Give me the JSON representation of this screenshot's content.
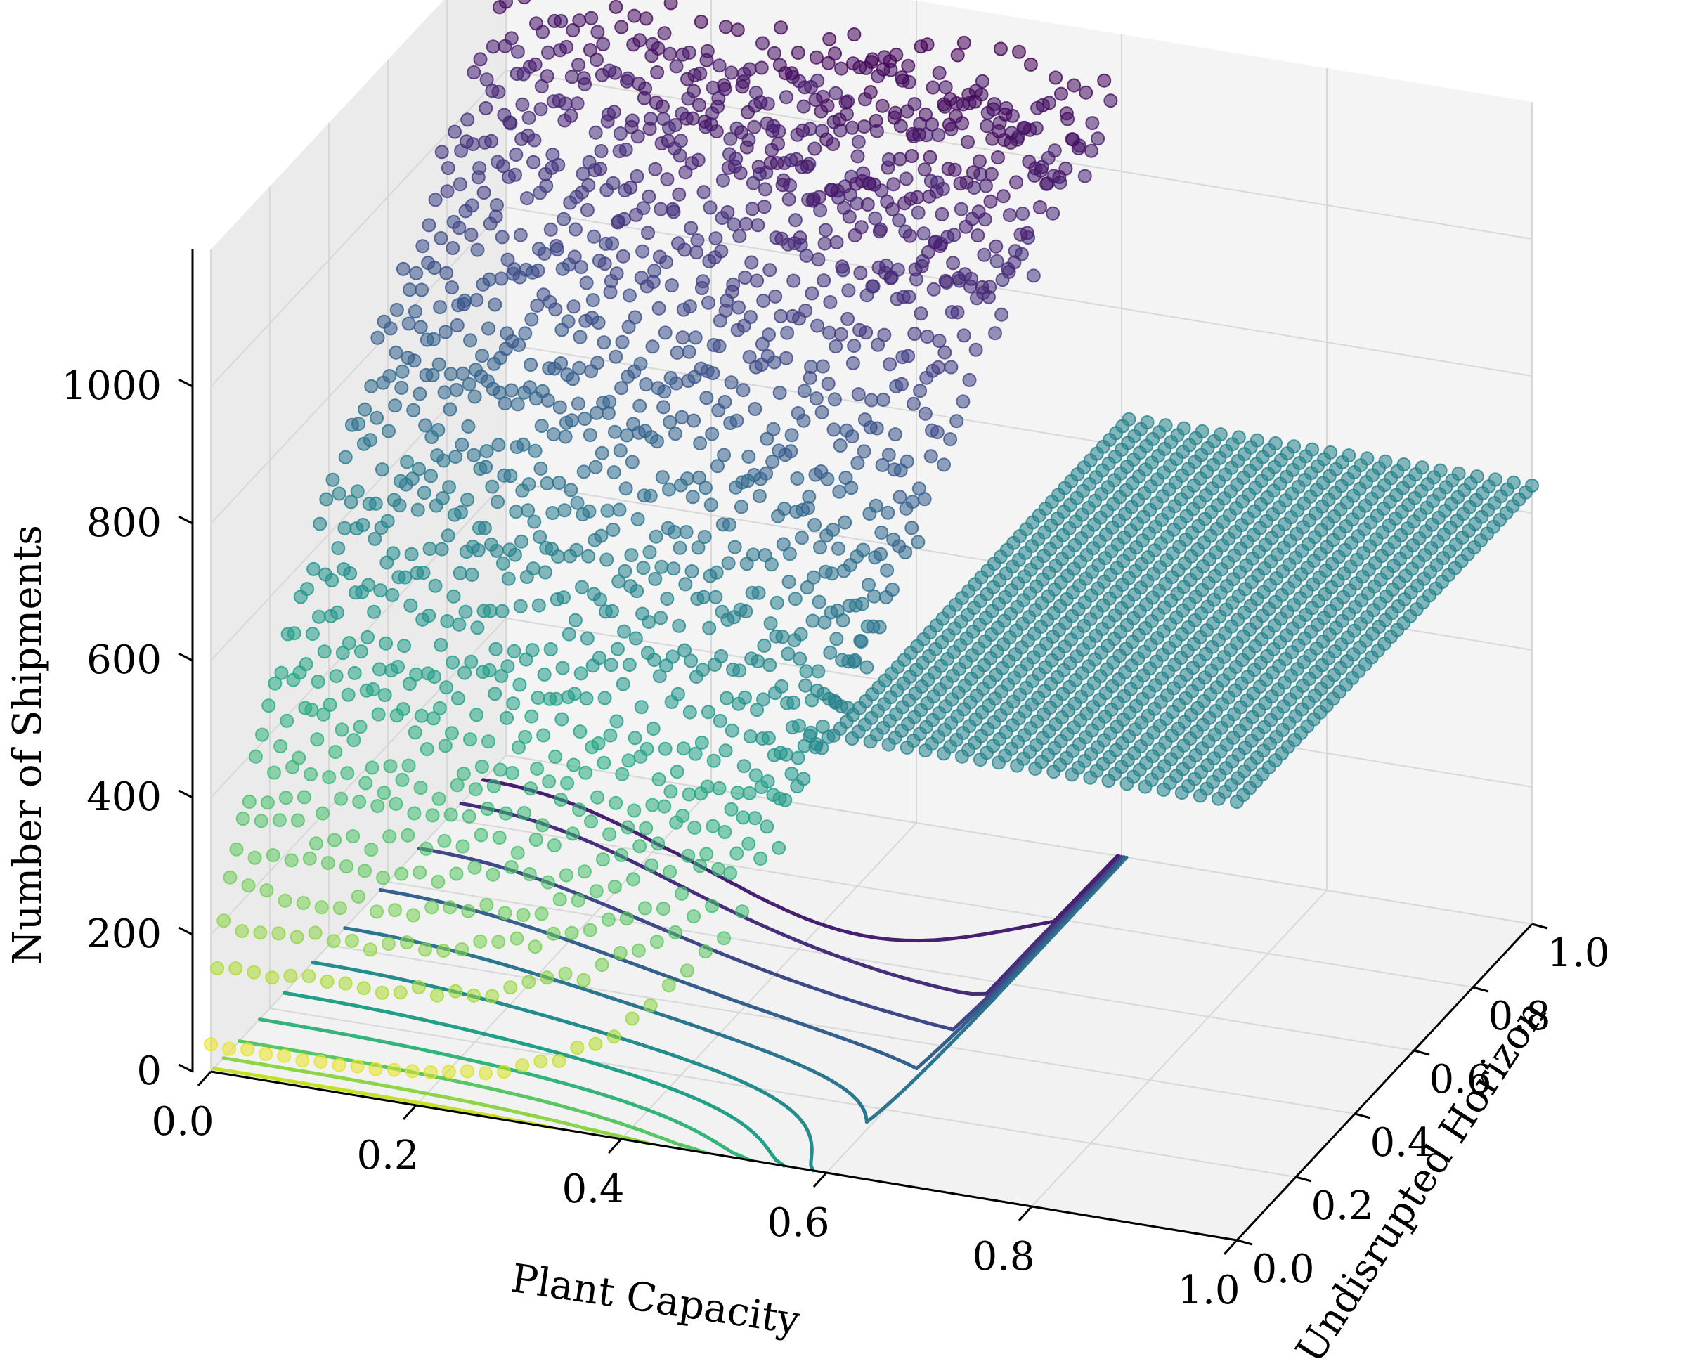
{
  "chart_data": {
    "type": "scatter",
    "subtype": "3d-scatter-surface-with-contour",
    "title": "",
    "xlabel": "Plant Capacity",
    "ylabel": "Undisrupted Horizon",
    "zlabel": "Number of Shipments",
    "xlim": [
      0.0,
      1.0
    ],
    "ylim": [
      0.0,
      1.0
    ],
    "zlim": [
      0,
      1200
    ],
    "xticks": [
      "0.0",
      "0.2",
      "0.4",
      "0.6",
      "0.8",
      "1.0"
    ],
    "yticks": [
      "0.0",
      "0.2",
      "0.4",
      "0.6",
      "0.8",
      "1.0"
    ],
    "zticks": [
      "0",
      "200",
      "400",
      "600",
      "800",
      "1000"
    ],
    "colormap": "viridis",
    "grid": true,
    "surface_profile": {
      "description_points": [
        {
          "x": 0.0,
          "y": 0.0,
          "z": 40
        },
        {
          "x": 0.0,
          "y": 0.5,
          "z": 700
        },
        {
          "x": 0.0,
          "y": 1.0,
          "z": 1050
        },
        {
          "x": 0.4,
          "y": 1.0,
          "z": 1100
        },
        {
          "x": 0.6,
          "y": 0.6,
          "z": 700
        },
        {
          "x": 1.0,
          "y": 0.0,
          "z": 640
        },
        {
          "x": 1.0,
          "y": 1.0,
          "z": 640
        }
      ],
      "plateau_value": 640,
      "plateau_from_x": 0.6
    },
    "contour_levels": [
      100,
      200,
      300,
      400,
      500,
      600,
      700,
      800,
      900,
      1000,
      1050
    ]
  }
}
